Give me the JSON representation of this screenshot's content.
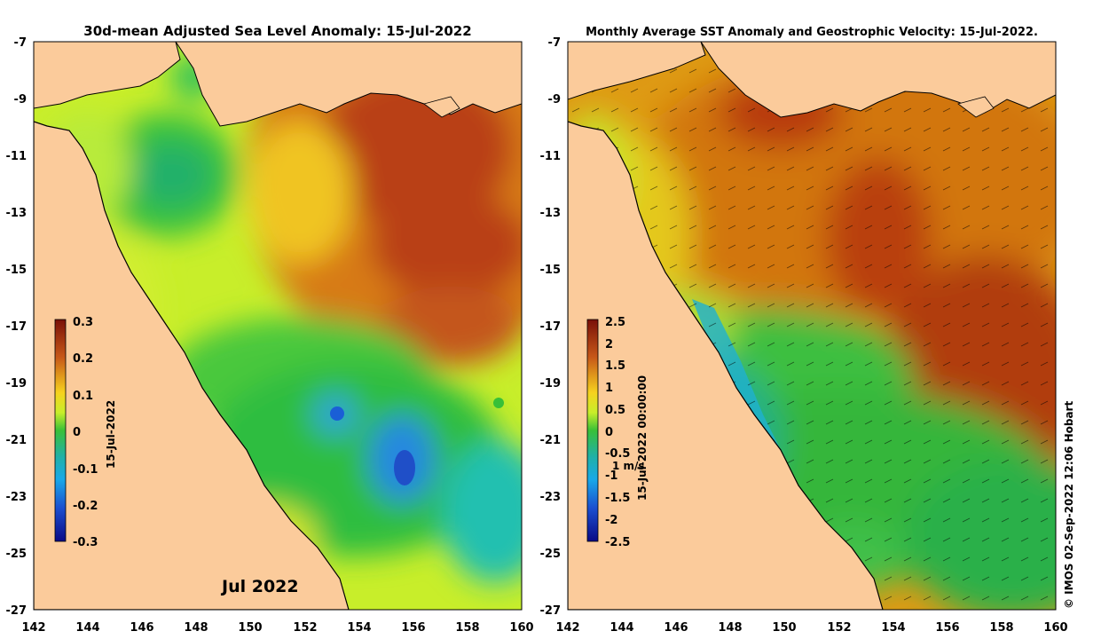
{
  "left_panel": {
    "title": "30d-mean Adjusted Sea Level Anomaly: 15-Jul-2022",
    "colorbar_ticks": [
      "0.3",
      "0.2",
      "0.1",
      "0",
      "-0.1",
      "-0.2",
      "-0.3"
    ],
    "colorbar_date_label": "15-Jul-2022",
    "month_label": "Jul 2022"
  },
  "right_panel": {
    "title": "Monthly Average SST Anomaly  and Geostrophic Velocity: 15-Jul-2022.",
    "colorbar_ticks": [
      "2.5",
      "2",
      "1.5",
      "1",
      "0.5",
      "0",
      "-0.5",
      "-1",
      "-1.5",
      "-2",
      "-2.5"
    ],
    "colorbar_date_label": "15-Jul-2022 00:00:00",
    "velocity_scale_label": "1 m/s"
  },
  "axes": {
    "lat_ticks": [
      "-7",
      "-9",
      "-11",
      "-13",
      "-15",
      "-17",
      "-19",
      "-21",
      "-23",
      "-25",
      "-27"
    ],
    "lon_ticks": [
      "142",
      "144",
      "146",
      "148",
      "150",
      "152",
      "154",
      "156",
      "158",
      "160"
    ],
    "lat_range": [
      -7,
      -27
    ],
    "lon_range": [
      142,
      160
    ]
  },
  "credit": "© IMOS 02-Sep-2022 12:06 Hobart",
  "colors": {
    "land": "#fbcb9b",
    "positive_high": "#a2240e",
    "zero": "#38c038",
    "negative_low": "#0a0a86"
  }
}
